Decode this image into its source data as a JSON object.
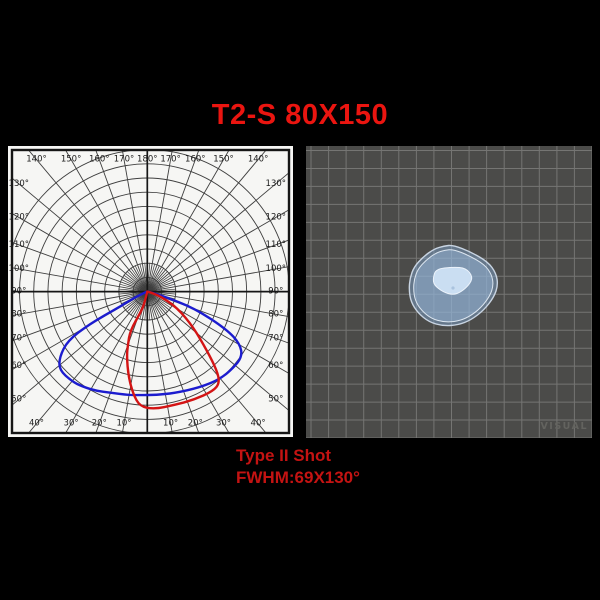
{
  "title": {
    "text": "T2-S 80X150",
    "color": "#ea1510"
  },
  "caption": {
    "line1": "Type II Shot",
    "line2": "FWHM:69X130°",
    "color": "#c41312"
  },
  "chart_data": [
    {
      "type": "line",
      "variant": "polar-candela-distribution",
      "title": "",
      "angle_unit": "degrees from nadir",
      "radial_unit": "relative intensity (grid rings, radial scale unlabeled)",
      "grid": {
        "rings": 10,
        "angle_step_deg": 10,
        "minor_angle_step_deg": 5,
        "label_angles": [
          10,
          20,
          30,
          40,
          50,
          60,
          70,
          80,
          90,
          100,
          110,
          120,
          130,
          140,
          150,
          160,
          170,
          180
        ],
        "degree_suffix": "°"
      },
      "colors": {
        "panel": "#f6f6f4",
        "grid": "#3e3e3e",
        "axis": "#161616",
        "labels": "#1a1a1a",
        "frame": "#161616"
      },
      "beam_fwhm_deg": {
        "narrow_plane": 69,
        "wide_plane": 130
      },
      "series": [
        {
          "name": "wide-plane-130deg",
          "color": "#1c1ccf",
          "points": [
            [
              -70,
              0.3
            ],
            [
              -63,
              1.5
            ],
            [
              -61,
              2.3
            ],
            [
              -60.7,
              4.7
            ],
            [
              -58.3,
              6.6
            ],
            [
              -53.3,
              7.7
            ],
            [
              -48.4,
              8.3
            ],
            [
              -40,
              8.25
            ],
            [
              -34.3,
              8.1
            ],
            [
              -27,
              7.85
            ],
            [
              -20.8,
              7.6
            ],
            [
              -10,
              7.4
            ],
            [
              -3.3,
              7.3
            ],
            [
              5,
              7.3
            ],
            [
              14.8,
              7.4
            ],
            [
              28.8,
              7.7
            ],
            [
              39.4,
              8.0
            ],
            [
              48.1,
              8.1
            ],
            [
              55.6,
              8.1
            ],
            [
              60.5,
              7.5
            ],
            [
              64.6,
              6.2
            ],
            [
              70.7,
              3.5
            ],
            [
              74,
              1.2
            ],
            [
              76,
              0.3
            ]
          ]
        },
        {
          "name": "narrow-plane-69deg",
          "color": "#d41414",
          "points": [
            [
              -14,
              0.8
            ],
            [
              -16.7,
              1.4
            ],
            [
              -23.7,
              3.0
            ],
            [
              -20,
              4.0
            ],
            [
              -17.5,
              4.8
            ],
            [
              -12.6,
              6.1
            ],
            [
              -7.8,
              7.3
            ],
            [
              -3.7,
              8.1
            ],
            [
              3.5,
              8.3
            ],
            [
              13.4,
              8.2
            ],
            [
              23.3,
              8.3
            ],
            [
              33.6,
              8.4
            ],
            [
              38.4,
              8.2
            ],
            [
              41.5,
              7.4
            ],
            [
              45.3,
              5.9
            ],
            [
              52.3,
              4.1
            ],
            [
              61.6,
              2.4
            ],
            [
              70,
              1.0
            ],
            [
              75,
              0.3
            ]
          ]
        }
      ]
    },
    {
      "type": "heatmap",
      "variant": "beam-footprint-contours",
      "grid": {
        "cols": 16,
        "rows": 16
      },
      "colors": {
        "background": "#4b4b49",
        "gridline": "#757573",
        "watermark": "#63635f",
        "marker": "#aac3de"
      },
      "levels": [
        {
          "name": "outer",
          "fill": "rgba(128,163,203,0.5)",
          "stroke": "#c9d5e3",
          "points": [
            [
              147,
              99
            ],
            [
              138,
              100
            ],
            [
              128,
              103
            ],
            [
              117,
              111
            ],
            [
              108,
              121
            ],
            [
              104,
              132
            ],
            [
              103,
              144
            ],
            [
              105,
              156
            ],
            [
              112,
              167
            ],
            [
              123,
              176
            ],
            [
              137,
              180
            ],
            [
              152,
              179
            ],
            [
              165,
              174
            ],
            [
              178,
              164
            ],
            [
              188,
              151
            ],
            [
              192,
              139
            ],
            [
              190,
              127
            ],
            [
              182,
              116
            ],
            [
              165,
              106
            ]
          ]
        },
        {
          "name": "middle",
          "scale_of_outer": 0.9,
          "fill": "rgba(158,189,222,0.45)",
          "stroke": "#dde7f1"
        },
        {
          "name": "inner",
          "fill": "#cadef2",
          "stroke": "#ecf3fb",
          "points": [
            [
              130,
              123
            ],
            [
              127,
              132
            ],
            [
              128,
              139
            ],
            [
              137,
              146
            ],
            [
              147,
              149
            ],
            [
              155,
              146
            ],
            [
              163,
              139
            ],
            [
              167,
              131
            ],
            [
              160,
              122
            ],
            [
              147,
              121
            ]
          ]
        }
      ],
      "center_marker": {
        "x": 147,
        "y": 142
      },
      "watermark": "VISUAL"
    }
  ]
}
